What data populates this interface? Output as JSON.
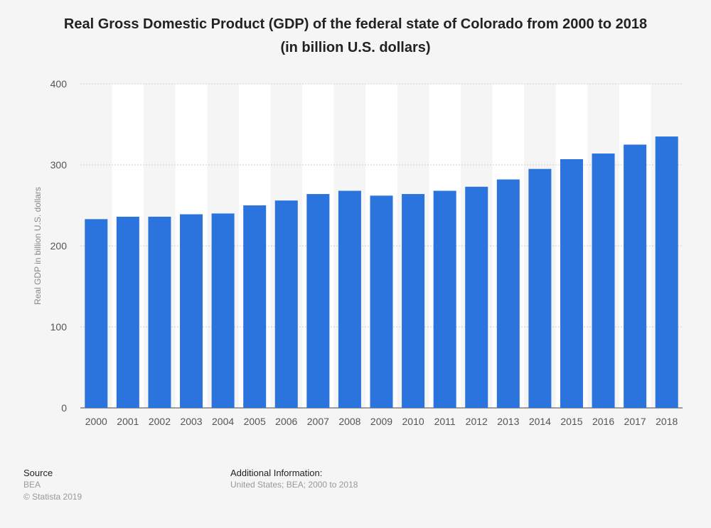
{
  "chart_data": {
    "type": "bar",
    "title": "Real Gross Domestic Product (GDP) of the federal state of Colorado from 2000 to 2018",
    "subtitle": "(in billion U.S. dollars)",
    "xlabel": "",
    "ylabel": "Real GDP in billion U.S. dollars",
    "ylim": [
      0,
      400
    ],
    "yticks": [
      0,
      100,
      200,
      300,
      400
    ],
    "grid": true,
    "categories": [
      "2000",
      "2001",
      "2002",
      "2003",
      "2004",
      "2005",
      "2006",
      "2007",
      "2008",
      "2009",
      "2010",
      "2011",
      "2012",
      "2013",
      "2014",
      "2015",
      "2016",
      "2017",
      "2018"
    ],
    "values": [
      233,
      236,
      236,
      239,
      240,
      250,
      256,
      264,
      268,
      262,
      264,
      268,
      273,
      282,
      295,
      307,
      314,
      325,
      335
    ],
    "bar_color": "#2b74de"
  },
  "footer": {
    "source_heading": "Source",
    "source_name": "BEA",
    "copyright": "© Statista 2019",
    "info_heading": "Additional Information:",
    "info_text": "United States; BEA; 2000 to 2018"
  }
}
